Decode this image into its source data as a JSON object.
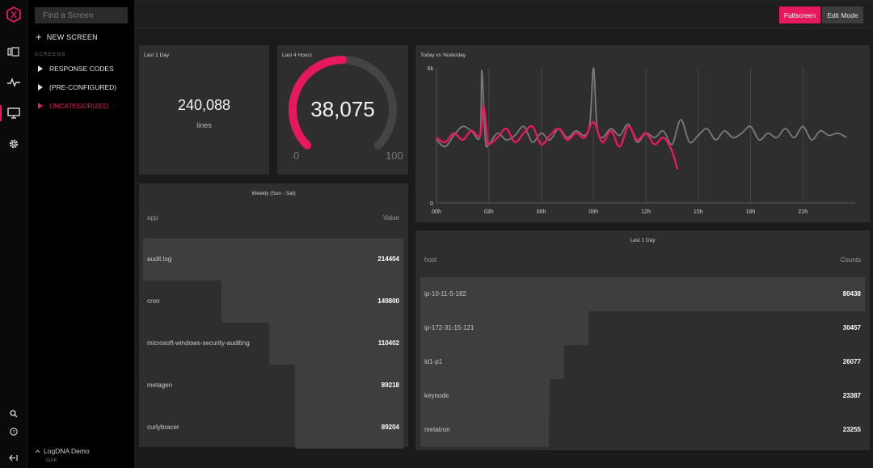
{
  "sidebar": {
    "search_placeholder": "Find a Screen",
    "new_screen": "NEW SCREEN",
    "section_title": "SCREENS",
    "items": [
      {
        "label": "RESPONSE CODES",
        "active": false
      },
      {
        "label": "(PRE-CONFIGURED)",
        "active": false
      },
      {
        "label": "UNCATEGORIZED",
        "active": true
      }
    ],
    "org_name": "LogDNA Demo",
    "org_sub": "OAK"
  },
  "rail": {
    "icons": [
      "logo-icon",
      "views-icon",
      "activity-icon",
      "screens-icon",
      "settings-icon",
      "search-icon",
      "help-icon",
      "collapse-icon"
    ],
    "active": "screens-icon"
  },
  "toolbar": {
    "fullscreen_label": "Fullscreen",
    "edit_label": "Edit Mode"
  },
  "colors": {
    "accent": "#e8185c",
    "panel": "#2e2e2e",
    "background": "#1b1b1b"
  },
  "count_widget": {
    "title": "Last 1 Day",
    "value": "240,088",
    "unit": "lines"
  },
  "gauge_widget": {
    "title": "Last 4 Hours",
    "value": "38,075",
    "min": "0",
    "max": "100",
    "fill_fraction": 0.5
  },
  "line_widget": {
    "title": "Today vs Yesterday"
  },
  "chart_data": {
    "type": "line",
    "ylim": [
      0,
      6000
    ],
    "y_ticks": [
      "0",
      "6k"
    ],
    "x_ticks": [
      "00h",
      "03h",
      "06h",
      "09h",
      "12h",
      "15h",
      "18h",
      "21h"
    ],
    "x_tick_hours": [
      0,
      3,
      6,
      9,
      12,
      15,
      18,
      21
    ],
    "series": [
      {
        "color": "#7a7a7a",
        "x": [
          0,
          0.5,
          1,
          1.5,
          2,
          2.5,
          2.6,
          2.8,
          3,
          3.5,
          4,
          4.5,
          5,
          5.5,
          6,
          6.5,
          7,
          7.5,
          8,
          8.5,
          8.8,
          9,
          9.2,
          9.5,
          10,
          10.5,
          11,
          11.5,
          12,
          12.5,
          13,
          13.5,
          14,
          14.5,
          15,
          15.5,
          16,
          16.5,
          17,
          17.5,
          18,
          18.5,
          19,
          19.5,
          20,
          20.5,
          21,
          21.5,
          22,
          22.5,
          23,
          23.5
        ],
        "values": [
          2800,
          2500,
          3000,
          3400,
          3200,
          3000,
          5900,
          2800,
          2600,
          3100,
          2800,
          3000,
          3400,
          2700,
          3100,
          2800,
          3300,
          2900,
          3200,
          3000,
          3600,
          6000,
          3400,
          2900,
          3300,
          3000,
          3500,
          2700,
          3100,
          2900,
          3200,
          2600,
          3700,
          2700,
          3000,
          3300,
          2800,
          3200,
          2900,
          3100,
          3400,
          2800,
          3100,
          2900,
          3300,
          2900,
          3400,
          2800,
          3200,
          3000,
          3100,
          2900
        ]
      },
      {
        "color": "#e8185c",
        "x": [
          0,
          0.5,
          1,
          1.5,
          2,
          2.5,
          2.7,
          2.9,
          3,
          3.5,
          4,
          4.5,
          5,
          5.5,
          6,
          6.5,
          7,
          7.5,
          8,
          8.5,
          9,
          9.5,
          10,
          10.5,
          11,
          11.5,
          12,
          12.5,
          13,
          13.5,
          13.8
        ],
        "values": [
          2900,
          2700,
          3100,
          2800,
          3200,
          3000,
          4300,
          2900,
          2600,
          2900,
          3300,
          2700,
          3100,
          3400,
          2600,
          3000,
          3300,
          2800,
          3100,
          2900,
          3600,
          2700,
          3200,
          2500,
          3400,
          2800,
          3100,
          2600,
          2900,
          2300,
          1500
        ]
      }
    ]
  },
  "weekly_table": {
    "title": "Weekly (Sun - Sat)",
    "col1": "app",
    "col2": "Value",
    "rows": [
      {
        "label": "audit.log",
        "value": "214404",
        "num": 214404
      },
      {
        "label": "cron",
        "value": "149800",
        "num": 149800
      },
      {
        "label": "microsoft-windows-security-auditing",
        "value": "110402",
        "num": 110402
      },
      {
        "label": "metagen",
        "value": "89218",
        "num": 89218
      },
      {
        "label": "curlybracer",
        "value": "89204",
        "num": 89204
      }
    ]
  },
  "host_table": {
    "title": "Last 1 Day",
    "col1": "host",
    "col2": "Counts",
    "rows": [
      {
        "label": "ip-10-11-5-182",
        "value": "80438",
        "num": 80438
      },
      {
        "label": "ip-172-31-15-121",
        "value": "30457",
        "num": 30457
      },
      {
        "label": "ld1-p1",
        "value": "26077",
        "num": 26077
      },
      {
        "label": "keynode",
        "value": "23387",
        "num": 23387
      },
      {
        "label": "metatron",
        "value": "23255",
        "num": 23255
      }
    ]
  }
}
